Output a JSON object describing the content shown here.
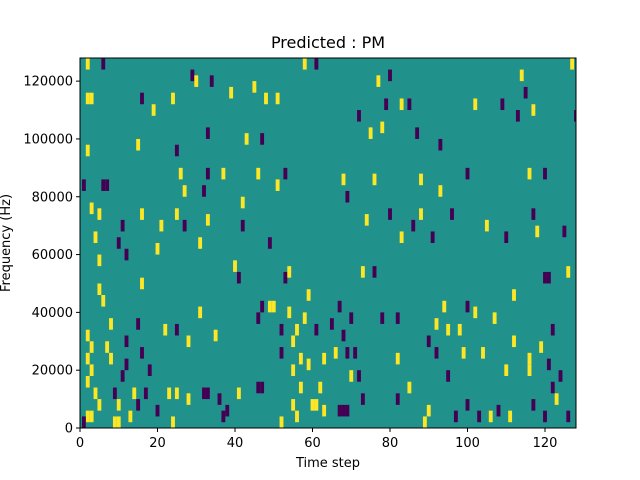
{
  "chart_data": {
    "type": "heatmap",
    "title": "Predicted : PM",
    "xlabel": "Time step",
    "ylabel": "Frequency (Hz)",
    "xlim": [
      0,
      128
    ],
    "ylim": [
      0,
      128000
    ],
    "x_ticks": [
      0,
      20,
      40,
      60,
      80,
      100,
      120
    ],
    "y_ticks": [
      0,
      20000,
      40000,
      60000,
      80000,
      100000,
      120000
    ],
    "colormap": "viridis",
    "background_value": 0,
    "values_legend": {
      "-1": "#440154",
      "0": "#21918c",
      "1": "#fde725"
    },
    "grid": false,
    "cells": [
      {
        "t": 2,
        "f": 4000,
        "v": 1
      },
      {
        "t": 3,
        "f": 4000,
        "v": 1
      },
      {
        "t": 4,
        "f": 12000,
        "v": 1
      },
      {
        "t": 5,
        "f": 8000,
        "v": 1
      },
      {
        "t": 2,
        "f": 16000,
        "v": 1
      },
      {
        "t": 3,
        "f": 20000,
        "v": 1
      },
      {
        "t": 2,
        "f": 24000,
        "v": 1
      },
      {
        "t": 3,
        "f": 28000,
        "v": 1
      },
      {
        "t": 2,
        "f": 32000,
        "v": 1
      },
      {
        "t": 1,
        "f": 2000,
        "v": -1
      },
      {
        "t": 2,
        "f": 114000,
        "v": 1
      },
      {
        "t": 3,
        "f": 114000,
        "v": 1
      },
      {
        "t": 2,
        "f": 126000,
        "v": 1
      },
      {
        "t": 6,
        "f": 126000,
        "v": -1
      },
      {
        "t": 2,
        "f": 96000,
        "v": 1
      },
      {
        "t": 1,
        "f": 84000,
        "v": -1
      },
      {
        "t": 6,
        "f": 84000,
        "v": -1
      },
      {
        "t": 7,
        "f": 84000,
        "v": -1
      },
      {
        "t": 3,
        "f": 76000,
        "v": 1
      },
      {
        "t": 5,
        "f": 74000,
        "v": 1
      },
      {
        "t": 4,
        "f": 66000,
        "v": 1
      },
      {
        "t": 5,
        "f": 58000,
        "v": 1
      },
      {
        "t": 5,
        "f": 48000,
        "v": 1
      },
      {
        "t": 6,
        "f": 44000,
        "v": 1
      },
      {
        "t": 8,
        "f": 36000,
        "v": 1
      },
      {
        "t": 7,
        "f": 28000,
        "v": 1
      },
      {
        "t": 8,
        "f": 24000,
        "v": 1
      },
      {
        "t": 9,
        "f": 2000,
        "v": 1
      },
      {
        "t": 10,
        "f": 2000,
        "v": 1
      },
      {
        "t": 9,
        "f": 12000,
        "v": -1
      },
      {
        "t": 10,
        "f": 8000,
        "v": 1
      },
      {
        "t": 11,
        "f": 18000,
        "v": -1
      },
      {
        "t": 12,
        "f": 22000,
        "v": -1
      },
      {
        "t": 12,
        "f": 30000,
        "v": -1
      },
      {
        "t": 10,
        "f": 64000,
        "v": -1
      },
      {
        "t": 11,
        "f": 70000,
        "v": -1
      },
      {
        "t": 12,
        "f": 60000,
        "v": -1
      },
      {
        "t": 13,
        "f": 4000,
        "v": 1
      },
      {
        "t": 14,
        "f": 12000,
        "v": 1
      },
      {
        "t": 15,
        "f": 8000,
        "v": -1
      },
      {
        "t": 15,
        "f": 36000,
        "v": -1
      },
      {
        "t": 17,
        "f": 12000,
        "v": -1
      },
      {
        "t": 18,
        "f": 20000,
        "v": -1
      },
      {
        "t": 16,
        "f": 26000,
        "v": -1
      },
      {
        "t": 16,
        "f": 50000,
        "v": 1
      },
      {
        "t": 15,
        "f": 98000,
        "v": 1
      },
      {
        "t": 16,
        "f": 114000,
        "v": -1
      },
      {
        "t": 16,
        "f": 74000,
        "v": 1
      },
      {
        "t": 19,
        "f": 110000,
        "v": 1
      },
      {
        "t": 20,
        "f": 6000,
        "v": -1
      },
      {
        "t": 20,
        "f": 62000,
        "v": 1
      },
      {
        "t": 21,
        "f": 70000,
        "v": 1
      },
      {
        "t": 22,
        "f": 34000,
        "v": 1
      },
      {
        "t": 23,
        "f": 12000,
        "v": 1
      },
      {
        "t": 24,
        "f": 2000,
        "v": 1
      },
      {
        "t": 25,
        "f": 12000,
        "v": 1
      },
      {
        "t": 25,
        "f": 34000,
        "v": -1
      },
      {
        "t": 24,
        "f": 114000,
        "v": 1
      },
      {
        "t": 25,
        "f": 74000,
        "v": 1
      },
      {
        "t": 25,
        "f": 96000,
        "v": -1
      },
      {
        "t": 26,
        "f": 88000,
        "v": 1
      },
      {
        "t": 27,
        "f": 82000,
        "v": 1
      },
      {
        "t": 28,
        "f": 10000,
        "v": 1
      },
      {
        "t": 28,
        "f": 30000,
        "v": 1
      },
      {
        "t": 27,
        "f": 70000,
        "v": -1
      },
      {
        "t": 29,
        "f": 122000,
        "v": -1
      },
      {
        "t": 30,
        "f": 120000,
        "v": 1
      },
      {
        "t": 31,
        "f": 64000,
        "v": 1
      },
      {
        "t": 31,
        "f": 40000,
        "v": 1
      },
      {
        "t": 32,
        "f": 12000,
        "v": -1
      },
      {
        "t": 33,
        "f": 12000,
        "v": -1
      },
      {
        "t": 32,
        "f": 82000,
        "v": -1
      },
      {
        "t": 33,
        "f": 88000,
        "v": -1
      },
      {
        "t": 33,
        "f": 72000,
        "v": 1
      },
      {
        "t": 33,
        "f": 102000,
        "v": -1
      },
      {
        "t": 34,
        "f": 120000,
        "v": -1
      },
      {
        "t": 35,
        "f": 32000,
        "v": 1
      },
      {
        "t": 36,
        "f": 10000,
        "v": -1
      },
      {
        "t": 37,
        "f": 88000,
        "v": 1
      },
      {
        "t": 37,
        "f": 4000,
        "v": -1
      },
      {
        "t": 38,
        "f": 6000,
        "v": -1
      },
      {
        "t": 39,
        "f": 116000,
        "v": 1
      },
      {
        "t": 40,
        "f": 56000,
        "v": 1
      },
      {
        "t": 41,
        "f": 12000,
        "v": 1
      },
      {
        "t": 41,
        "f": 52000,
        "v": -1
      },
      {
        "t": 42,
        "f": 78000,
        "v": 1
      },
      {
        "t": 42,
        "f": 70000,
        "v": -1
      },
      {
        "t": 43,
        "f": 100000,
        "v": 1
      },
      {
        "t": 45,
        "f": 118000,
        "v": 1
      },
      {
        "t": 46,
        "f": 14000,
        "v": -1
      },
      {
        "t": 47,
        "f": 14000,
        "v": -1
      },
      {
        "t": 46,
        "f": 38000,
        "v": -1
      },
      {
        "t": 47,
        "f": 42000,
        "v": -1
      },
      {
        "t": 46,
        "f": 88000,
        "v": 1
      },
      {
        "t": 47,
        "f": 100000,
        "v": -1
      },
      {
        "t": 48,
        "f": 114000,
        "v": 1
      },
      {
        "t": 49,
        "f": 64000,
        "v": -1
      },
      {
        "t": 49,
        "f": 42000,
        "v": 1
      },
      {
        "t": 50,
        "f": 42000,
        "v": 1
      },
      {
        "t": 51,
        "f": 114000,
        "v": 1
      },
      {
        "t": 52,
        "f": 2000,
        "v": 1
      },
      {
        "t": 51,
        "f": 84000,
        "v": 1
      },
      {
        "t": 52,
        "f": 26000,
        "v": -1
      },
      {
        "t": 52,
        "f": 34000,
        "v": -1
      },
      {
        "t": 53,
        "f": 52000,
        "v": -1
      },
      {
        "t": 53,
        "f": 88000,
        "v": -1
      },
      {
        "t": 54,
        "f": 40000,
        "v": 1
      },
      {
        "t": 54,
        "f": 54000,
        "v": 1
      },
      {
        "t": 55,
        "f": 8000,
        "v": 1
      },
      {
        "t": 55,
        "f": 20000,
        "v": 1
      },
      {
        "t": 55,
        "f": 30000,
        "v": 1
      },
      {
        "t": 56,
        "f": 4000,
        "v": 1
      },
      {
        "t": 56,
        "f": 34000,
        "v": 1
      },
      {
        "t": 57,
        "f": 14000,
        "v": 1
      },
      {
        "t": 57,
        "f": 24000,
        "v": 1
      },
      {
        "t": 58,
        "f": 38000,
        "v": 1
      },
      {
        "t": 58,
        "f": 126000,
        "v": 1
      },
      {
        "t": 59,
        "f": 46000,
        "v": 1
      },
      {
        "t": 59,
        "f": 22000,
        "v": 1
      },
      {
        "t": 60,
        "f": 8000,
        "v": 1
      },
      {
        "t": 61,
        "f": 8000,
        "v": 1
      },
      {
        "t": 61,
        "f": 34000,
        "v": -1
      },
      {
        "t": 61,
        "f": 126000,
        "v": -1
      },
      {
        "t": 62,
        "f": 14000,
        "v": 1
      },
      {
        "t": 63,
        "f": 6000,
        "v": 1
      },
      {
        "t": 63,
        "f": 24000,
        "v": 1
      },
      {
        "t": 65,
        "f": 36000,
        "v": -1
      },
      {
        "t": 66,
        "f": 26000,
        "v": 1
      },
      {
        "t": 67,
        "f": 6000,
        "v": -1
      },
      {
        "t": 68,
        "f": 6000,
        "v": -1
      },
      {
        "t": 69,
        "f": 6000,
        "v": -1
      },
      {
        "t": 67,
        "f": 42000,
        "v": -1
      },
      {
        "t": 68,
        "f": 32000,
        "v": -1
      },
      {
        "t": 69,
        "f": 26000,
        "v": -1
      },
      {
        "t": 70,
        "f": 18000,
        "v": 1
      },
      {
        "t": 68,
        "f": 86000,
        "v": 1
      },
      {
        "t": 69,
        "f": 80000,
        "v": -1
      },
      {
        "t": 70,
        "f": 38000,
        "v": -1
      },
      {
        "t": 71,
        "f": 26000,
        "v": -1
      },
      {
        "t": 72,
        "f": 18000,
        "v": -1
      },
      {
        "t": 72,
        "f": 108000,
        "v": -1
      },
      {
        "t": 73,
        "f": 54000,
        "v": 1
      },
      {
        "t": 73,
        "f": 10000,
        "v": -1
      },
      {
        "t": 74,
        "f": 72000,
        "v": 1
      },
      {
        "t": 75,
        "f": 102000,
        "v": 1
      },
      {
        "t": 76,
        "f": 54000,
        "v": -1
      },
      {
        "t": 76,
        "f": 86000,
        "v": 1
      },
      {
        "t": 77,
        "f": 120000,
        "v": 1
      },
      {
        "t": 78,
        "f": 104000,
        "v": 1
      },
      {
        "t": 78,
        "f": 38000,
        "v": -1
      },
      {
        "t": 79,
        "f": 112000,
        "v": -1
      },
      {
        "t": 80,
        "f": 74000,
        "v": -1
      },
      {
        "t": 80,
        "f": 122000,
        "v": -1
      },
      {
        "t": 82,
        "f": 10000,
        "v": -1
      },
      {
        "t": 82,
        "f": 24000,
        "v": 1
      },
      {
        "t": 82,
        "f": 38000,
        "v": -1
      },
      {
        "t": 83,
        "f": 66000,
        "v": 1
      },
      {
        "t": 83,
        "f": 112000,
        "v": 1
      },
      {
        "t": 85,
        "f": 112000,
        "v": -1
      },
      {
        "t": 85,
        "f": 14000,
        "v": 1
      },
      {
        "t": 86,
        "f": 70000,
        "v": -1
      },
      {
        "t": 87,
        "f": 102000,
        "v": -1
      },
      {
        "t": 88,
        "f": 74000,
        "v": 1
      },
      {
        "t": 88,
        "f": 86000,
        "v": 1
      },
      {
        "t": 89,
        "f": 2000,
        "v": 1
      },
      {
        "t": 90,
        "f": 6000,
        "v": 1
      },
      {
        "t": 90,
        "f": 30000,
        "v": -1
      },
      {
        "t": 91,
        "f": 66000,
        "v": -1
      },
      {
        "t": 92,
        "f": 26000,
        "v": -1
      },
      {
        "t": 92,
        "f": 36000,
        "v": 1
      },
      {
        "t": 93,
        "f": 82000,
        "v": 1
      },
      {
        "t": 93,
        "f": 98000,
        "v": -1
      },
      {
        "t": 94,
        "f": 42000,
        "v": 1
      },
      {
        "t": 95,
        "f": 18000,
        "v": -1
      },
      {
        "t": 95,
        "f": 34000,
        "v": 1
      },
      {
        "t": 96,
        "f": 74000,
        "v": -1
      },
      {
        "t": 97,
        "f": 4000,
        "v": -1
      },
      {
        "t": 98,
        "f": 34000,
        "v": 1
      },
      {
        "t": 99,
        "f": 26000,
        "v": 1
      },
      {
        "t": 100,
        "f": 8000,
        "v": -1
      },
      {
        "t": 100,
        "f": 42000,
        "v": -1
      },
      {
        "t": 100,
        "f": 88000,
        "v": -1
      },
      {
        "t": 102,
        "f": 40000,
        "v": 1
      },
      {
        "t": 102,
        "f": 112000,
        "v": 1
      },
      {
        "t": 103,
        "f": 4000,
        "v": -1
      },
      {
        "t": 104,
        "f": 26000,
        "v": 1
      },
      {
        "t": 105,
        "f": 70000,
        "v": 1
      },
      {
        "t": 106,
        "f": 4000,
        "v": 1
      },
      {
        "t": 107,
        "f": 38000,
        "v": 1
      },
      {
        "t": 108,
        "f": 6000,
        "v": -1
      },
      {
        "t": 109,
        "f": 112000,
        "v": -1
      },
      {
        "t": 110,
        "f": 66000,
        "v": -1
      },
      {
        "t": 110,
        "f": 20000,
        "v": 1
      },
      {
        "t": 111,
        "f": 4000,
        "v": 1
      },
      {
        "t": 112,
        "f": 30000,
        "v": 1
      },
      {
        "t": 112,
        "f": 46000,
        "v": 1
      },
      {
        "t": 113,
        "f": 108000,
        "v": -1
      },
      {
        "t": 114,
        "f": 122000,
        "v": 1
      },
      {
        "t": 115,
        "f": 116000,
        "v": -1
      },
      {
        "t": 116,
        "f": 20000,
        "v": 1
      },
      {
        "t": 116,
        "f": 24000,
        "v": 1
      },
      {
        "t": 116,
        "f": 88000,
        "v": 1
      },
      {
        "t": 117,
        "f": 8000,
        "v": -1
      },
      {
        "t": 117,
        "f": 74000,
        "v": -1
      },
      {
        "t": 117,
        "f": 110000,
        "v": 1
      },
      {
        "t": 118,
        "f": 68000,
        "v": 1
      },
      {
        "t": 119,
        "f": 28000,
        "v": 1
      },
      {
        "t": 120,
        "f": 4000,
        "v": -1
      },
      {
        "t": 120,
        "f": 52000,
        "v": -1
      },
      {
        "t": 121,
        "f": 52000,
        "v": -1
      },
      {
        "t": 120,
        "f": 88000,
        "v": -1
      },
      {
        "t": 121,
        "f": 22000,
        "v": -1
      },
      {
        "t": 122,
        "f": 14000,
        "v": -1
      },
      {
        "t": 122,
        "f": 34000,
        "v": -1
      },
      {
        "t": 123,
        "f": 10000,
        "v": 1
      },
      {
        "t": 124,
        "f": 18000,
        "v": -1
      },
      {
        "t": 125,
        "f": 68000,
        "v": -1
      },
      {
        "t": 126,
        "f": 4000,
        "v": -1
      },
      {
        "t": 126,
        "f": 54000,
        "v": 1
      },
      {
        "t": 127,
        "f": 126000,
        "v": 1
      },
      {
        "t": 128,
        "f": 108000,
        "v": -1
      }
    ]
  }
}
